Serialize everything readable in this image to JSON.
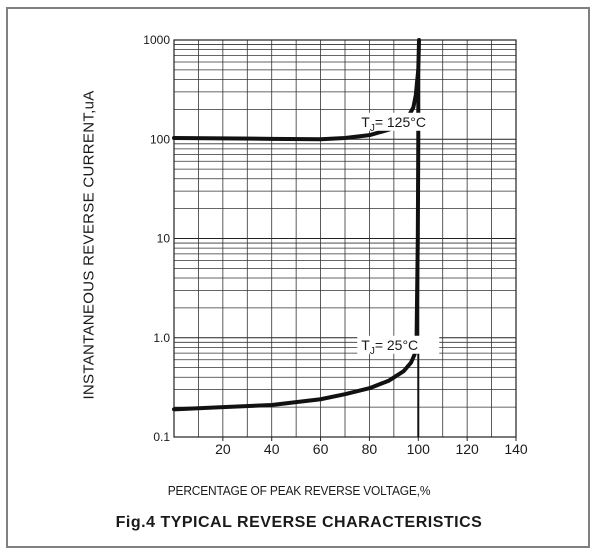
{
  "chart_data": {
    "type": "line",
    "title": "Fig.4 TYPICAL REVERSE CHARACTERISTICS",
    "xlabel": "PERCENTAGE OF PEAK REVERSE VOLTAGE,%",
    "ylabel": "INSTANTANEOUS REVERSE CURRENT,uA",
    "xlim": [
      0,
      140
    ],
    "ylim": [
      0.1,
      1000
    ],
    "yscale": "log",
    "x_ticks": [
      20,
      40,
      60,
      80,
      100,
      120,
      140
    ],
    "y_ticks": [
      {
        "value": 0.1,
        "label": "0.1"
      },
      {
        "value": 1,
        "label": "1.0"
      },
      {
        "value": 10,
        "label": "10"
      },
      {
        "value": 100,
        "label": "100"
      },
      {
        "value": 1000,
        "label": "1000"
      }
    ],
    "grid": true,
    "series": [
      {
        "name": "TJ= 125°C",
        "label_parts": {
          "base": "T",
          "sub": "J",
          "rest": "= 125°C"
        },
        "label_at": [
          48,
          150
        ],
        "x": [
          0,
          20,
          40,
          60,
          70,
          80,
          88,
          93,
          96,
          98,
          99,
          99.5,
          100
        ],
        "y": [
          103,
          102,
          101,
          100,
          103,
          110,
          125,
          145,
          170,
          210,
          280,
          380,
          500
        ]
      },
      {
        "name": "TJ= 25°C",
        "label_parts": {
          "base": "T",
          "sub": "J",
          "rest": "= 25°C"
        },
        "label_at": [
          48,
          0.85
        ],
        "x": [
          0,
          20,
          40,
          60,
          70,
          80,
          88,
          94,
          97,
          98.5,
          99.3,
          99.8,
          100,
          100,
          100.3
        ],
        "y": [
          0.19,
          0.2,
          0.21,
          0.24,
          0.27,
          0.31,
          0.37,
          0.46,
          0.56,
          0.68,
          1.0,
          10,
          100,
          500,
          1000
        ]
      }
    ]
  }
}
